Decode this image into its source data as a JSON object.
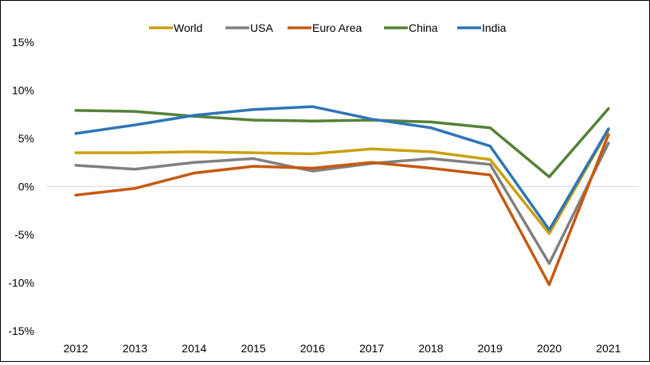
{
  "chart_data": {
    "type": "line",
    "categories": [
      "2012",
      "2013",
      "2014",
      "2015",
      "2016",
      "2017",
      "2018",
      "2019",
      "2020",
      "2021"
    ],
    "ylim": [
      -15,
      15
    ],
    "yticks": [
      -15,
      -10,
      -5,
      0,
      5,
      10,
      15
    ],
    "ytick_labels": [
      "-15%",
      "-10%",
      "-5%",
      "0%",
      "5%",
      "10%",
      "15%"
    ],
    "legend_position": "top-center",
    "series": [
      {
        "name": "World",
        "color": "#C9A010",
        "values": [
          3.5,
          3.5,
          3.6,
          3.5,
          3.4,
          3.9,
          3.6,
          2.8,
          -4.9,
          5.9
        ]
      },
      {
        "name": "USA",
        "color": "#808080",
        "values": [
          2.2,
          1.8,
          2.5,
          2.9,
          1.6,
          2.4,
          2.9,
          2.3,
          -8.0,
          4.5
        ]
      },
      {
        "name": "Euro Area",
        "color": "#C65911",
        "values": [
          -0.9,
          -0.2,
          1.4,
          2.1,
          1.9,
          2.5,
          1.9,
          1.2,
          -10.2,
          5.4
        ]
      },
      {
        "name": "China",
        "color": "#548235",
        "values": [
          7.9,
          7.8,
          7.3,
          6.9,
          6.8,
          6.9,
          6.7,
          6.1,
          1.0,
          8.1
        ]
      },
      {
        "name": "India",
        "color": "#2E75B6",
        "values": [
          5.5,
          6.4,
          7.4,
          8.0,
          8.3,
          7.0,
          6.1,
          4.2,
          -4.5,
          6.0
        ]
      }
    ]
  }
}
